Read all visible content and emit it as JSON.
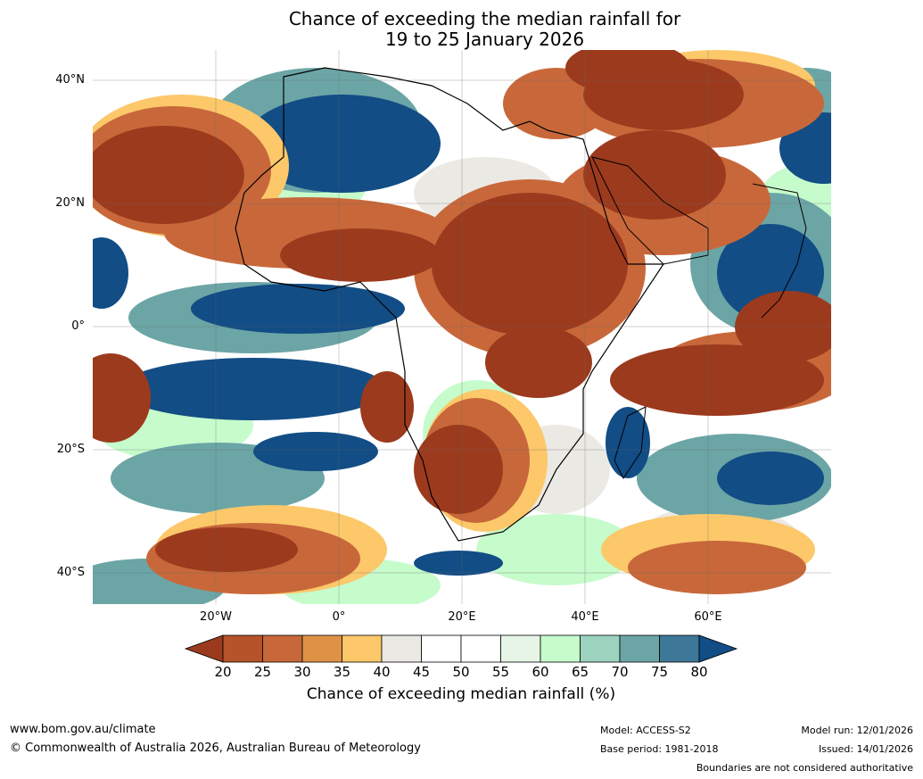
{
  "title": {
    "line1": "Chance of exceeding the median rainfall for",
    "line2": "19 to 25 January 2026"
  },
  "map": {
    "lat_labels": [
      "40°N",
      "20°N",
      "0°",
      "20°S",
      "40°S"
    ],
    "lon_labels": [
      "20°W",
      "0°",
      "20°E",
      "40°E",
      "60°E"
    ],
    "region": "Africa"
  },
  "colorbar": {
    "title": "Chance of exceeding median rainfall (%)",
    "ticks": [
      "20",
      "25",
      "30",
      "35",
      "40",
      "45",
      "50",
      "55",
      "60",
      "65",
      "70",
      "75",
      "80"
    ],
    "colors": [
      "#9c3a1e",
      "#b5532a",
      "#c8683a",
      "#df9245",
      "#fcc86a",
      "#ebe9e4",
      "#ffffff",
      "#ffffff",
      "#e6f5e6",
      "#c6fbcc",
      "#9bd3bf",
      "#6ca5a6",
      "#3e7898",
      "#124d85"
    ]
  },
  "footer": {
    "website": "www.bom.gov.au/climate",
    "copyright": "© Commonwealth of Australia 2026, Australian Bureau of Meteorology",
    "model": "Model: ACCESS-S2",
    "base_period": "Base period: 1981-2018",
    "model_run": "Model run: 12/01/2026",
    "issued": "Issued: 14/01/2026",
    "disclaimer": "Boundaries are not considered authoritative"
  }
}
